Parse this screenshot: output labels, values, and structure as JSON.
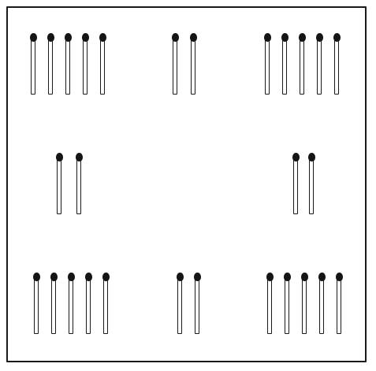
{
  "puzzle": {
    "groups": [
      {
        "id": "top-left",
        "count": 5
      },
      {
        "id": "top-center",
        "count": 2
      },
      {
        "id": "top-right",
        "count": 5
      },
      {
        "id": "middle-left",
        "count": 2
      },
      {
        "id": "middle-right",
        "count": 2
      },
      {
        "id": "bottom-left",
        "count": 5
      },
      {
        "id": "bottom-center",
        "count": 2
      },
      {
        "id": "bottom-right",
        "count": 5
      }
    ],
    "colors": {
      "outline": "#1a1a1a",
      "match_head": "#151515",
      "background": "#ffffff"
    },
    "icon": "matchstick-icon"
  }
}
